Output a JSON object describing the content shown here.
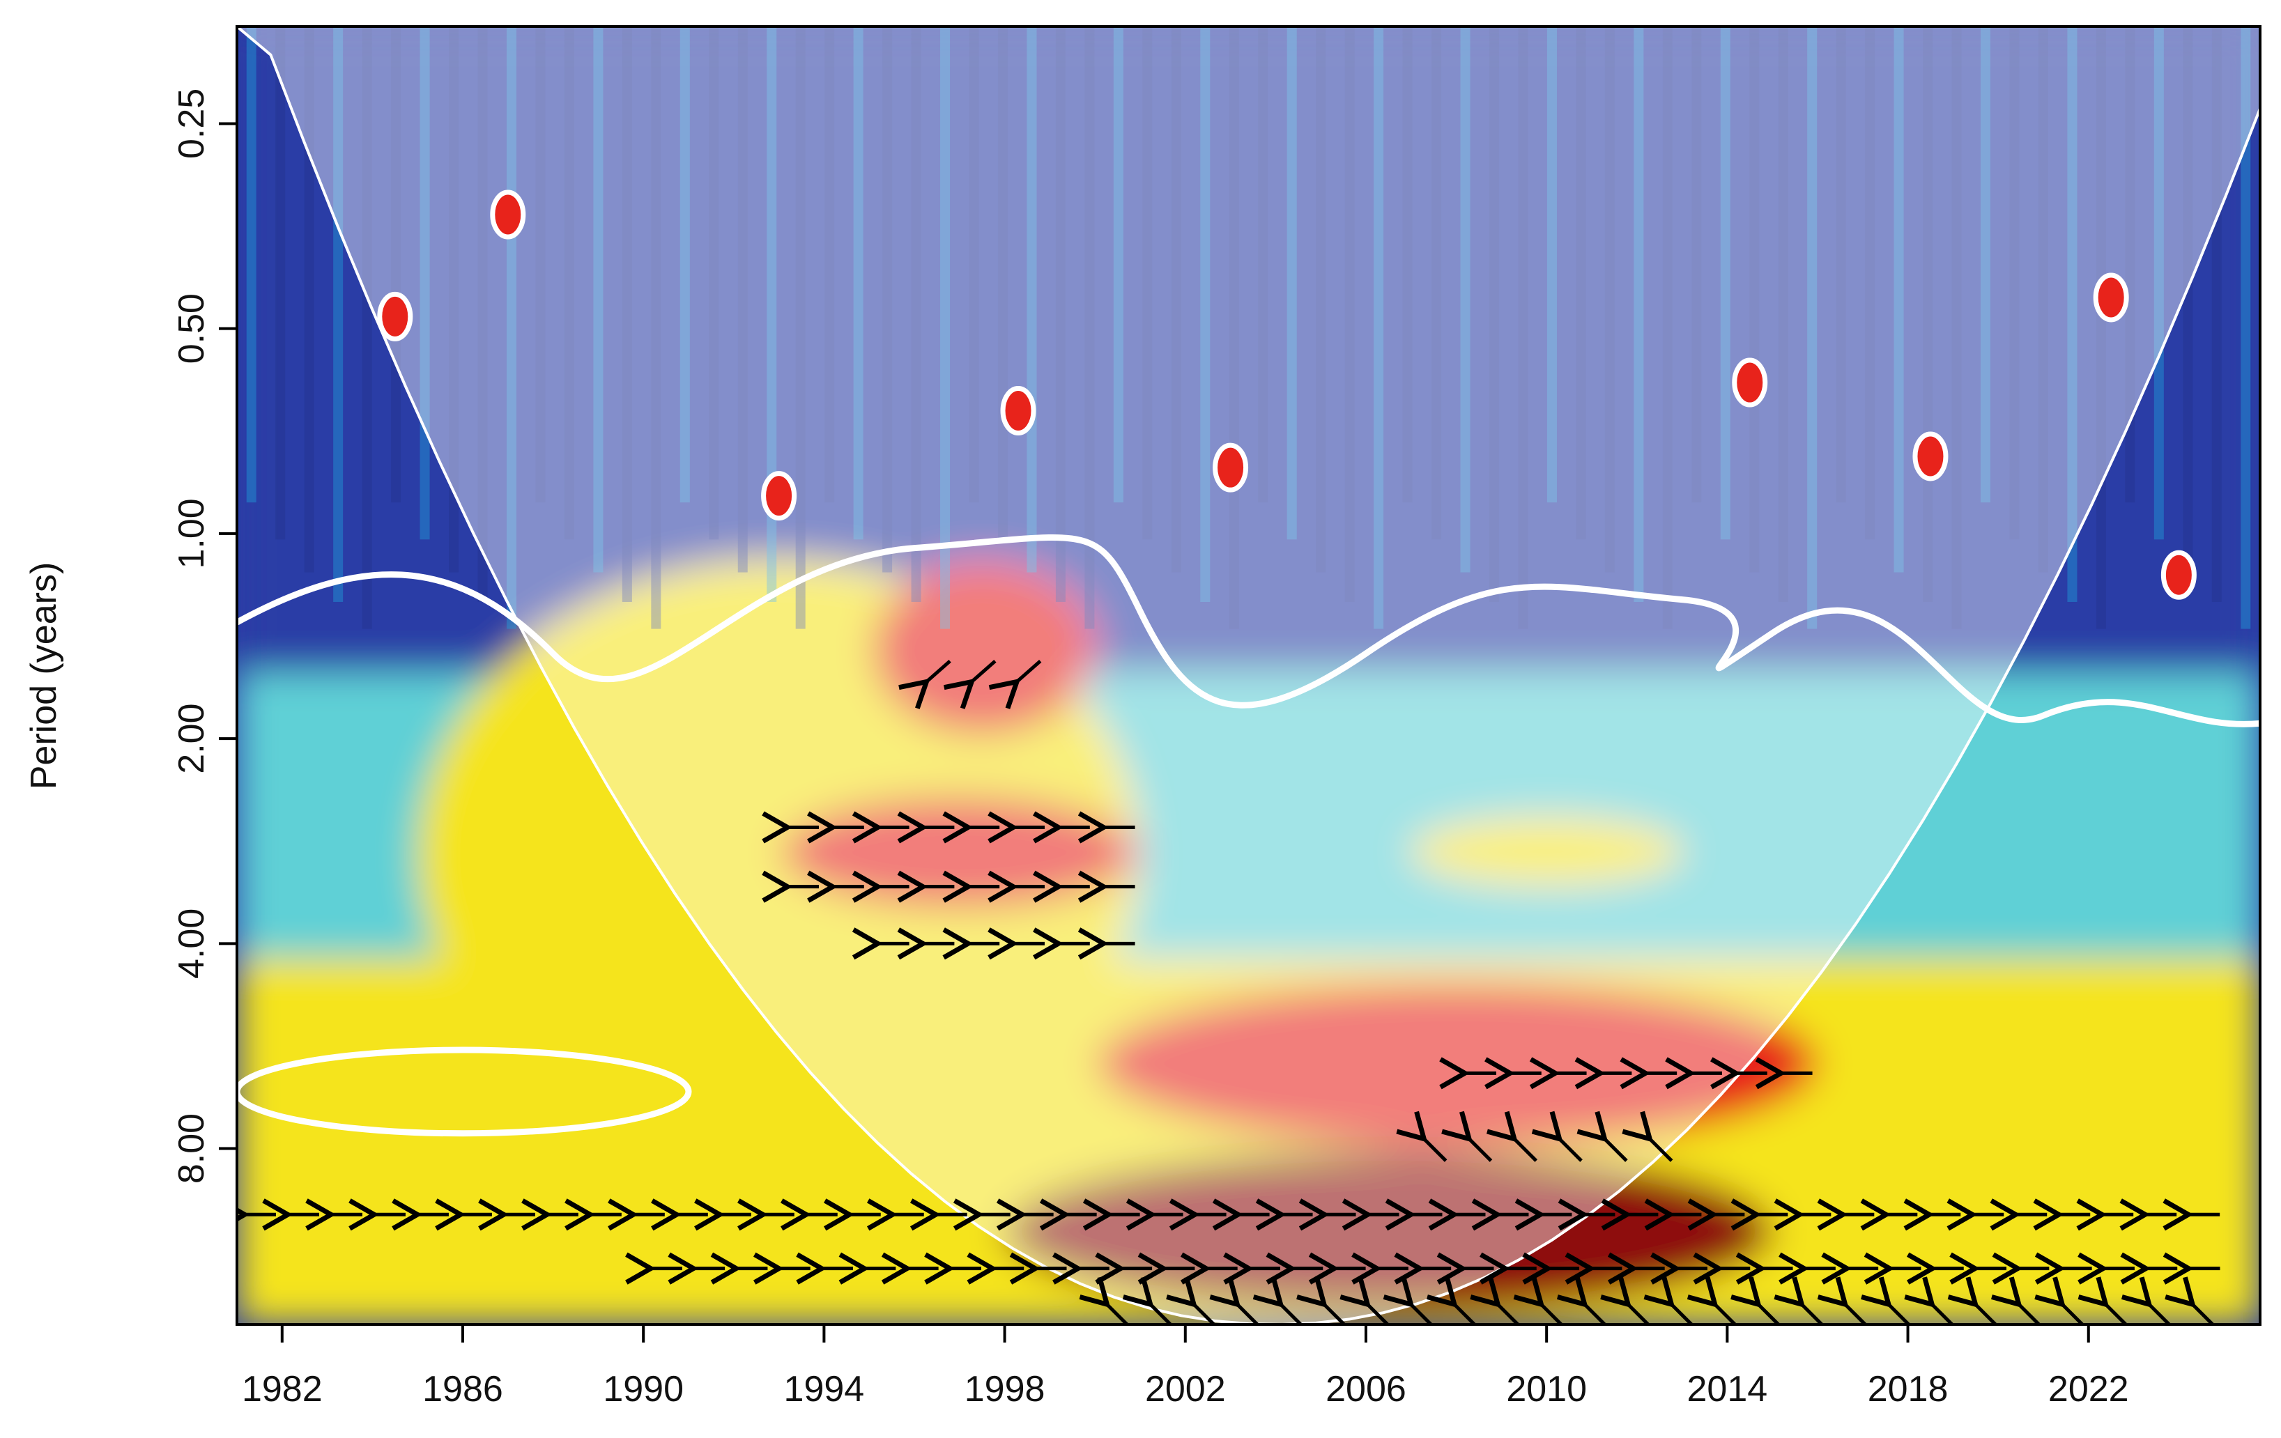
{
  "chart_data": {
    "type": "heatmap",
    "subtype": "wavelet-coherence",
    "ylabel": "Period (years)",
    "xlabel": "",
    "x_ticks": [
      "1982",
      "1986",
      "1990",
      "1994",
      "1998",
      "2002",
      "2006",
      "2010",
      "2014",
      "2018",
      "2022"
    ],
    "y_ticks": [
      "0.25",
      "0.50",
      "1.00",
      "2.00",
      "4.00",
      "8.00"
    ],
    "y_scale": "log2",
    "y_reversed": true,
    "xlim": [
      1981.0,
      2025.8
    ],
    "ylim": [
      0.18,
      14.5
    ],
    "colormap": [
      "#2b3da6",
      "#1f9bd6",
      "#5fd0d6",
      "#a7d94a",
      "#f5e41c",
      "#f59a1c",
      "#e8231b",
      "#8e0f0f"
    ],
    "cone_of_influence": {
      "outside_shading": "faded",
      "line_color": "#ffffff",
      "apex_x": 2004.0
    },
    "significance_contour_color": "#ffffff",
    "high_coherence_regions": [
      {
        "x": [
          1985.0,
          2001.0
        ],
        "period": [
          1.1,
          8.0
        ],
        "level": "moderate-high"
      },
      {
        "x": [
          1993.0,
          2001.0
        ],
        "period": [
          2.4,
          3.6
        ],
        "level": "high"
      },
      {
        "x": [
          1995.0,
          2000.0
        ],
        "period": [
          1.1,
          2.0
        ],
        "level": "high"
      },
      {
        "x": [
          2000.0,
          2016.0
        ],
        "period": [
          4.5,
          8.0
        ],
        "level": "high"
      },
      {
        "x": [
          1998.0,
          2015.0
        ],
        "period": [
          8.0,
          14.0
        ],
        "level": "very-high"
      },
      {
        "x": [
          2007.0,
          2013.0
        ],
        "period": [
          2.6,
          3.3
        ],
        "level": "moderate-high"
      }
    ],
    "phase_arrows": [
      {
        "x": [
          1993.0,
          2001.0
        ],
        "period": 2.7,
        "direction": "left"
      },
      {
        "x": [
          1993.0,
          2001.0
        ],
        "period": 3.3,
        "direction": "left"
      },
      {
        "x": [
          1995.0,
          2001.0
        ],
        "period": 4.0,
        "direction": "left"
      },
      {
        "x": [
          1996.0,
          1999.0
        ],
        "period": 1.6,
        "direction": "down-left"
      },
      {
        "x": [
          2008.0,
          2016.0
        ],
        "period": 6.2,
        "direction": "left"
      },
      {
        "x": [
          2007.0,
          2013.0
        ],
        "period": 8.0,
        "direction": "up-left"
      },
      {
        "x": [
          1981.0,
          2025.0
        ],
        "period": 10.0,
        "direction": "left"
      },
      {
        "x": [
          1990.0,
          2025.0
        ],
        "period": 12.0,
        "direction": "left"
      },
      {
        "x": [
          2000.0,
          2025.0
        ],
        "period": 14.0,
        "direction": "up-left"
      }
    ]
  }
}
